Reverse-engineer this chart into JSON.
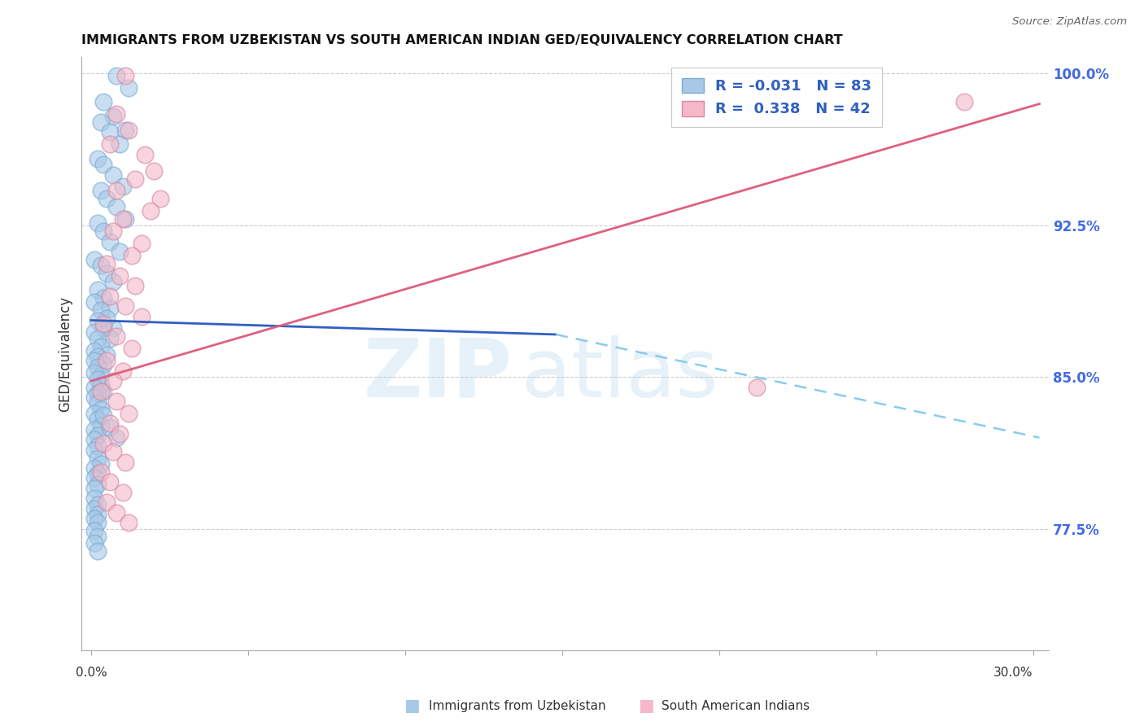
{
  "title": "IMMIGRANTS FROM UZBEKISTAN VS SOUTH AMERICAN INDIAN GED/EQUIVALENCY CORRELATION CHART",
  "source": "Source: ZipAtlas.com",
  "ylabel": "GED/Equivalency",
  "ylim": [
    0.715,
    1.008
  ],
  "xlim": [
    -0.003,
    0.305
  ],
  "yticks_right": [
    0.775,
    0.85,
    0.925,
    1.0
  ],
  "ytick_labels_right": [
    "77.5%",
    "85.0%",
    "92.5%",
    "100.0%"
  ],
  "blue_color": "#a8c8e8",
  "pink_color": "#f4b8c8",
  "trend_blue_solid_color": "#3060c0",
  "trend_blue_dashed_color": "#88ccee",
  "trend_pink_color": "#e06080",
  "watermark_zip": "ZIP",
  "watermark_atlas": "atlas",
  "blue_scatter_x": [
    0.008,
    0.012,
    0.004,
    0.007,
    0.011,
    0.003,
    0.006,
    0.009,
    0.002,
    0.004,
    0.007,
    0.01,
    0.003,
    0.005,
    0.008,
    0.011,
    0.002,
    0.004,
    0.006,
    0.009,
    0.001,
    0.003,
    0.005,
    0.007,
    0.002,
    0.004,
    0.006,
    0.001,
    0.003,
    0.005,
    0.007,
    0.002,
    0.004,
    0.006,
    0.001,
    0.002,
    0.003,
    0.005,
    0.001,
    0.002,
    0.004,
    0.001,
    0.002,
    0.003,
    0.001,
    0.002,
    0.003,
    0.004,
    0.001,
    0.002,
    0.001,
    0.002,
    0.003,
    0.001,
    0.002,
    0.003,
    0.001,
    0.002,
    0.001,
    0.002,
    0.001,
    0.002,
    0.003,
    0.001,
    0.002,
    0.001,
    0.002,
    0.001,
    0.001,
    0.002,
    0.001,
    0.002,
    0.001,
    0.002,
    0.001,
    0.002,
    0.001,
    0.002,
    0.004,
    0.006,
    0.008
  ],
  "blue_scatter_y": [
    0.999,
    0.993,
    0.986,
    0.979,
    0.972,
    0.976,
    0.971,
    0.965,
    0.958,
    0.955,
    0.95,
    0.944,
    0.942,
    0.938,
    0.934,
    0.928,
    0.926,
    0.922,
    0.917,
    0.912,
    0.908,
    0.905,
    0.901,
    0.897,
    0.893,
    0.889,
    0.884,
    0.887,
    0.883,
    0.879,
    0.874,
    0.878,
    0.874,
    0.869,
    0.872,
    0.869,
    0.865,
    0.861,
    0.863,
    0.86,
    0.856,
    0.858,
    0.855,
    0.851,
    0.852,
    0.849,
    0.846,
    0.843,
    0.845,
    0.842,
    0.84,
    0.837,
    0.834,
    0.832,
    0.829,
    0.826,
    0.824,
    0.821,
    0.819,
    0.816,
    0.814,
    0.81,
    0.807,
    0.805,
    0.802,
    0.8,
    0.797,
    0.795,
    0.79,
    0.787,
    0.785,
    0.782,
    0.78,
    0.778,
    0.774,
    0.771,
    0.768,
    0.764,
    0.831,
    0.825,
    0.82
  ],
  "pink_scatter_x": [
    0.011,
    0.008,
    0.012,
    0.006,
    0.017,
    0.02,
    0.014,
    0.008,
    0.022,
    0.019,
    0.01,
    0.007,
    0.016,
    0.013,
    0.005,
    0.009,
    0.014,
    0.006,
    0.011,
    0.016,
    0.004,
    0.008,
    0.013,
    0.005,
    0.01,
    0.007,
    0.003,
    0.008,
    0.012,
    0.006,
    0.009,
    0.004,
    0.007,
    0.011,
    0.003,
    0.006,
    0.01,
    0.005,
    0.008,
    0.012,
    0.212,
    0.278
  ],
  "pink_scatter_y": [
    0.999,
    0.98,
    0.972,
    0.965,
    0.96,
    0.952,
    0.948,
    0.942,
    0.938,
    0.932,
    0.928,
    0.922,
    0.916,
    0.91,
    0.906,
    0.9,
    0.895,
    0.89,
    0.885,
    0.88,
    0.876,
    0.87,
    0.864,
    0.858,
    0.853,
    0.848,
    0.843,
    0.838,
    0.832,
    0.827,
    0.822,
    0.817,
    0.813,
    0.808,
    0.803,
    0.798,
    0.793,
    0.788,
    0.783,
    0.778,
    0.845,
    0.986
  ],
  "blue_solid_trend_x": [
    0.0,
    0.148
  ],
  "blue_solid_trend_y": [
    0.878,
    0.871
  ],
  "blue_dashed_trend_x": [
    0.148,
    0.302
  ],
  "blue_dashed_trend_y": [
    0.871,
    0.82
  ],
  "pink_solid_trend_x": [
    0.0,
    0.302
  ],
  "pink_solid_trend_y": [
    0.848,
    0.985
  ]
}
